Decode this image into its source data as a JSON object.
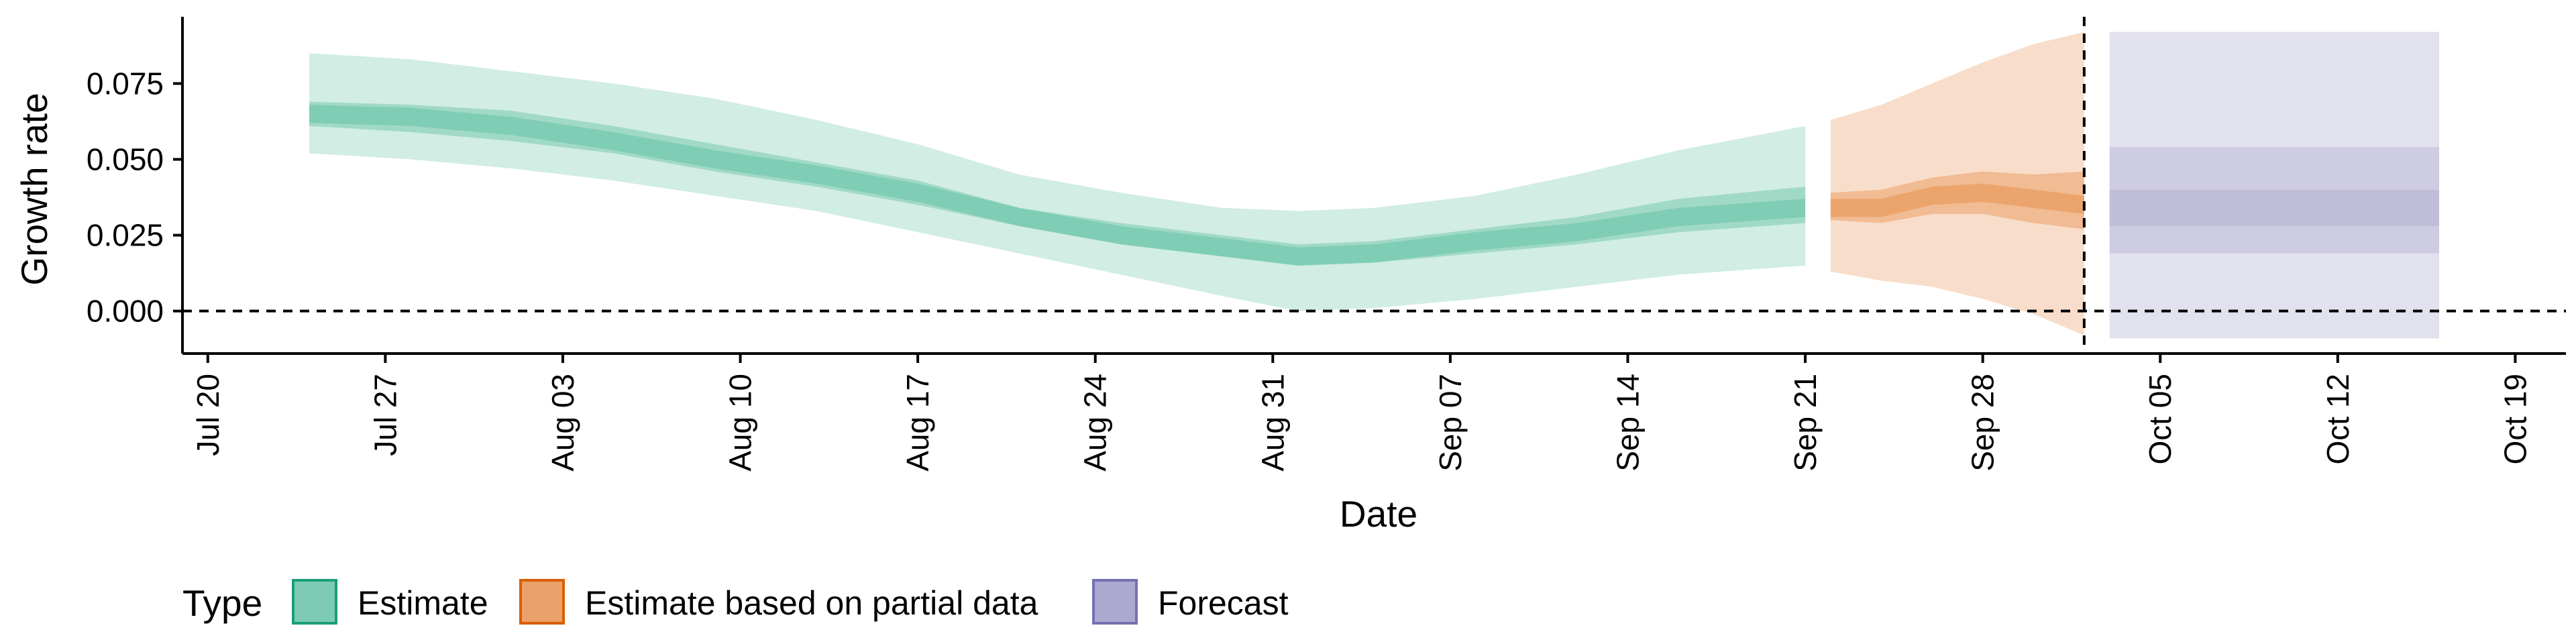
{
  "chart_data": {
    "type": "area",
    "xlabel": "Date",
    "ylabel": "Growth rate",
    "x_ticks": [
      "Jul 20",
      "Jul 27",
      "Aug 03",
      "Aug 10",
      "Aug 17",
      "Aug 24",
      "Aug 31",
      "Sep 07",
      "Sep 14",
      "Sep 21",
      "Sep 28",
      "Oct 05",
      "Oct 12",
      "Oct 19"
    ],
    "y_ticks": [
      "0.000",
      "0.025",
      "0.050",
      "0.075"
    ],
    "xlim": [
      "2020-07-19",
      "2020-10-21"
    ],
    "ylim": [
      -0.014,
      0.097
    ],
    "hline_y": 0,
    "vline_x": "2020-10-02",
    "legend_title": "Type",
    "legend_position": "bottom",
    "legend": [
      "Estimate",
      "Estimate based on partial data",
      "Forecast"
    ],
    "colors": {
      "Estimate": "#66c2a5",
      "Estimate based on partial data": "#e8914f",
      "Forecast": "#9e9ac8",
      "Estimate_border": "#1b9e77",
      "Estimate based on partial data_border": "#d95f02",
      "Forecast_border": "#7570b3"
    },
    "series": [
      {
        "name": "Estimate",
        "dates": [
          "2020-07-24",
          "2020-07-28",
          "2020-08-01",
          "2020-08-05",
          "2020-08-09",
          "2020-08-13",
          "2020-08-17",
          "2020-08-21",
          "2020-08-25",
          "2020-08-29",
          "2020-09-01",
          "2020-09-04",
          "2020-09-08",
          "2020-09-12",
          "2020-09-16",
          "2020-09-21"
        ],
        "median": [
          0.065,
          0.064,
          0.061,
          0.056,
          0.05,
          0.045,
          0.039,
          0.031,
          0.025,
          0.021,
          0.018,
          0.019,
          0.023,
          0.026,
          0.031,
          0.034
        ],
        "lower_50": [
          0.061,
          0.059,
          0.056,
          0.052,
          0.046,
          0.041,
          0.035,
          0.028,
          0.022,
          0.018,
          0.015,
          0.016,
          0.019,
          0.022,
          0.026,
          0.029
        ],
        "upper_50": [
          0.069,
          0.068,
          0.066,
          0.061,
          0.055,
          0.049,
          0.043,
          0.034,
          0.029,
          0.025,
          0.022,
          0.023,
          0.027,
          0.031,
          0.037,
          0.041
        ],
        "lower_90": [
          0.052,
          0.05,
          0.047,
          0.043,
          0.038,
          0.033,
          0.026,
          0.019,
          0.012,
          0.005,
          0.0,
          0.001,
          0.004,
          0.008,
          0.012,
          0.015
        ],
        "upper_90": [
          0.085,
          0.083,
          0.079,
          0.075,
          0.07,
          0.063,
          0.055,
          0.045,
          0.039,
          0.034,
          0.033,
          0.034,
          0.038,
          0.045,
          0.053,
          0.061
        ]
      },
      {
        "name": "Estimate based on partial data",
        "dates": [
          "2020-09-22",
          "2020-09-24",
          "2020-09-26",
          "2020-09-28",
          "2020-09-30",
          "2020-10-02"
        ],
        "median": [
          0.034,
          0.034,
          0.038,
          0.039,
          0.037,
          0.035
        ],
        "lower_50": [
          0.03,
          0.029,
          0.032,
          0.032,
          0.029,
          0.027
        ],
        "upper_50": [
          0.039,
          0.04,
          0.044,
          0.046,
          0.045,
          0.046
        ],
        "lower_90": [
          0.013,
          0.01,
          0.008,
          0.004,
          -0.001,
          -0.008
        ],
        "upper_90": [
          0.063,
          0.068,
          0.075,
          0.082,
          0.088,
          0.092
        ]
      },
      {
        "name": "Forecast",
        "dates": [
          "2020-10-03",
          "2020-10-16"
        ],
        "median": [
          0.034,
          0.034
        ],
        "lower_50": [
          0.028,
          0.028
        ],
        "upper_50": [
          0.04,
          0.04
        ],
        "lower_75": [
          0.019,
          0.019
        ],
        "upper_75": [
          0.054,
          0.054
        ],
        "lower_90": [
          -0.009,
          -0.009
        ],
        "upper_90": [
          0.092,
          0.092
        ]
      }
    ]
  }
}
